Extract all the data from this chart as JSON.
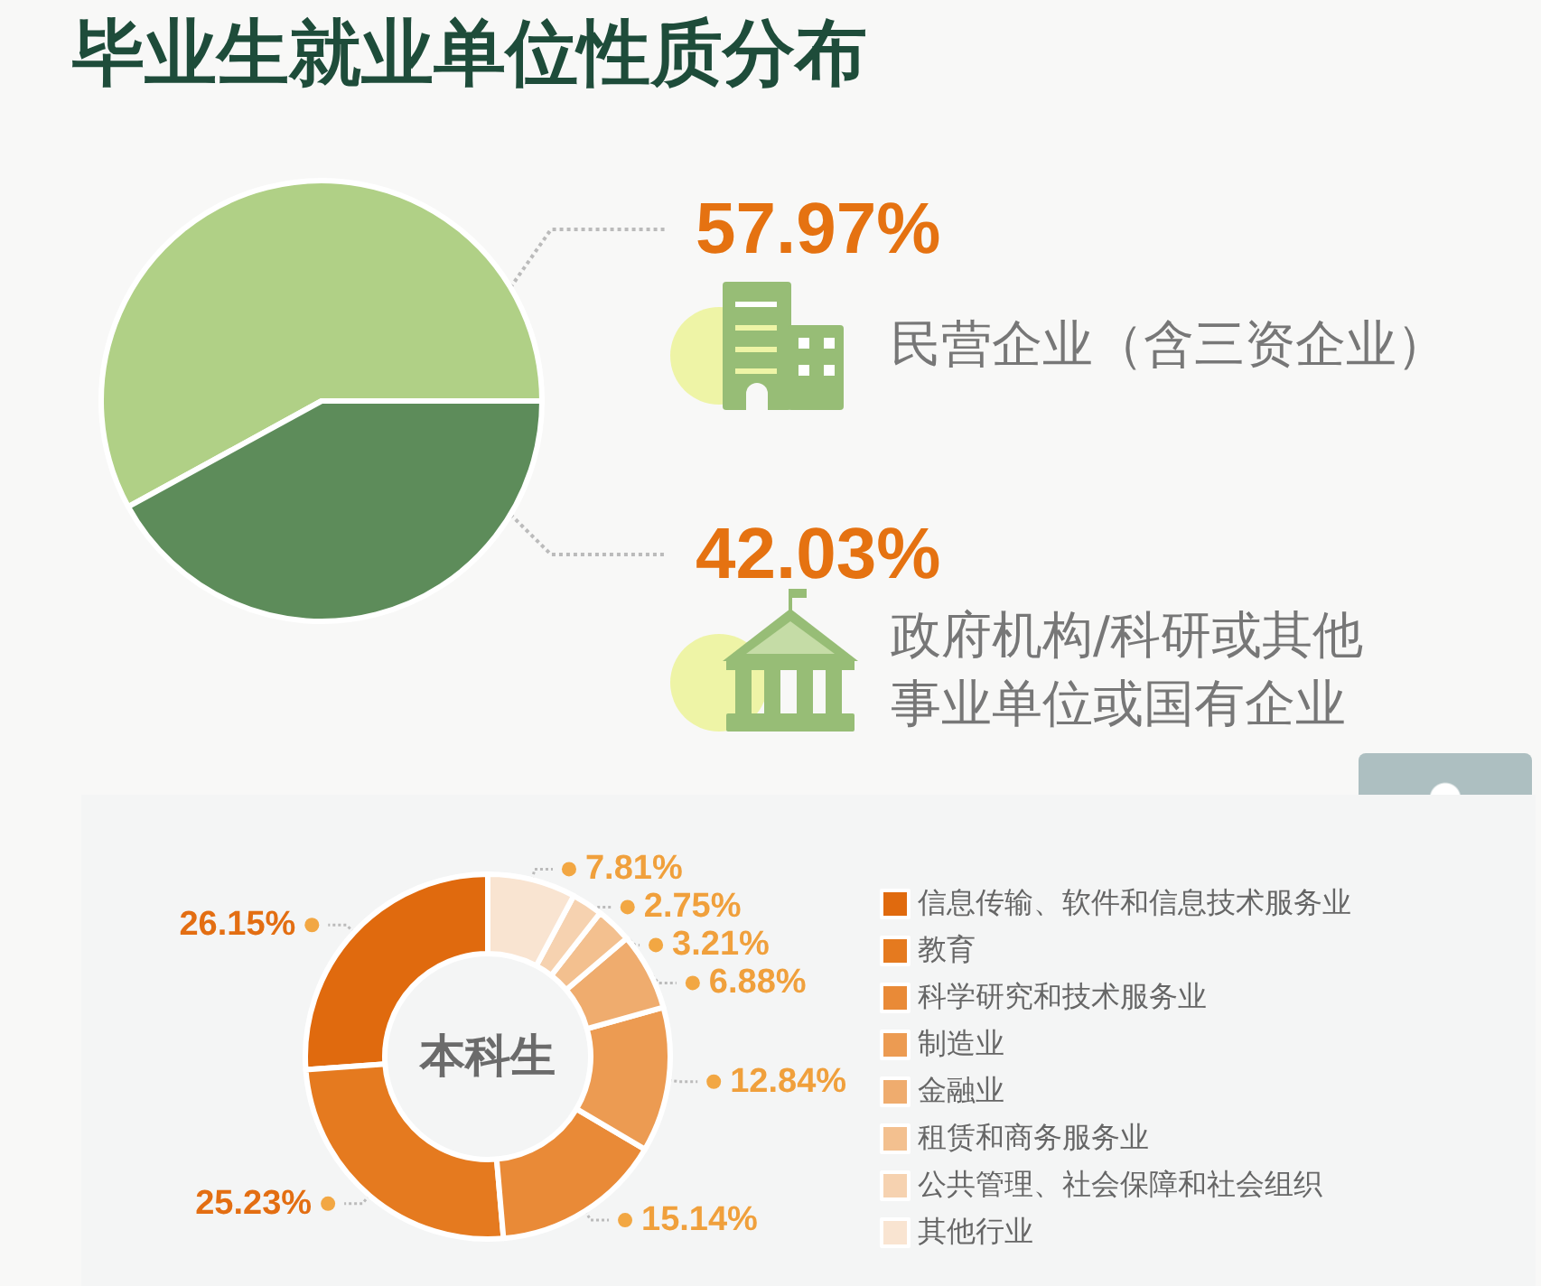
{
  "chart_data": [
    {
      "type": "pie",
      "title": "毕业生就业单位性质分布",
      "categories": [
        "民营企业（含三资企业）",
        "政府机构/科研或其他事业单位或国有企业"
      ],
      "values": [
        57.97,
        42.03
      ],
      "value_labels": [
        "57.97%",
        "42.03%"
      ],
      "colors": [
        "#b0d086",
        "#5d8c5a"
      ]
    },
    {
      "type": "donut",
      "title": "本科生",
      "categories": [
        "信息传输、软件和信息技术服务业",
        "教育",
        "科学研究和技术服务业",
        "制造业",
        "金融业",
        "租赁和商务服务业",
        "公共管理、社会保障和社会组织",
        "其他行业"
      ],
      "values": [
        26.15,
        25.23,
        15.14,
        12.84,
        6.88,
        3.21,
        2.75,
        7.81
      ],
      "value_labels": [
        "26.15%",
        "25.23%",
        "15.14%",
        "12.84%",
        "6.88%",
        "3.21%",
        "2.75%",
        "7.81%"
      ],
      "colors": [
        "#e06a0e",
        "#e57a1f",
        "#e98a37",
        "#ec9b52",
        "#efac6e",
        "#f3c08f",
        "#f6d2b0",
        "#f9e4d1"
      ],
      "legend": "right"
    }
  ]
}
